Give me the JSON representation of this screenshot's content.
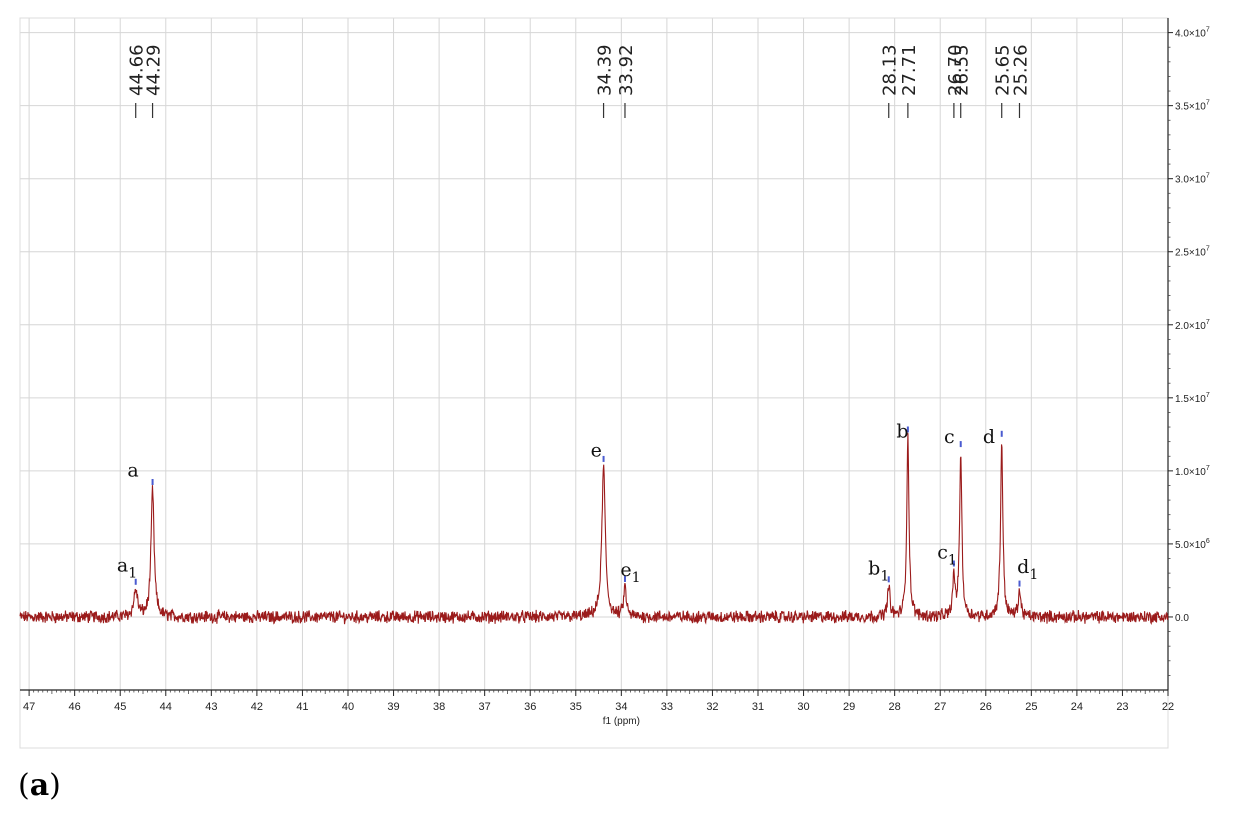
{
  "panel_label": {
    "open": "(",
    "letter": "a",
    "close": ")"
  },
  "chart_data": {
    "type": "line",
    "title": "",
    "xlabel": "f1 (ppm)",
    "ylabel": "",
    "xlim": [
      47.2,
      22.0
    ],
    "ylim": [
      -5000000,
      41000000
    ],
    "x_reversed": true,
    "grid": true,
    "line_color": "#9b1b1b",
    "peak_tick_color": "#4a5bd0",
    "x_ticks": [
      47,
      46,
      45,
      44,
      43,
      42,
      41,
      40,
      39,
      38,
      37,
      36,
      35,
      34,
      33,
      32,
      31,
      30,
      29,
      28,
      27,
      26,
      25,
      24,
      23,
      22
    ],
    "x_tick_labels": [
      "47",
      "46",
      "45",
      "44",
      "43",
      "42",
      "41",
      "40",
      "39",
      "38",
      "37",
      "36",
      "35",
      "34",
      "33",
      "32",
      "31",
      "30",
      "29",
      "28",
      "27",
      "26",
      "25",
      "24",
      "23",
      "22"
    ],
    "y_ticks": [
      {
        "value": 0,
        "mantissa": "0.0",
        "exp": ""
      },
      {
        "value": 5000000,
        "mantissa": "5.0×10",
        "exp": "6"
      },
      {
        "value": 10000000,
        "mantissa": "1.0×10",
        "exp": "7"
      },
      {
        "value": 15000000,
        "mantissa": "1.5×10",
        "exp": "7"
      },
      {
        "value": 20000000,
        "mantissa": "2.0×10",
        "exp": "7"
      },
      {
        "value": 25000000,
        "mantissa": "2.5×10",
        "exp": "7"
      },
      {
        "value": 30000000,
        "mantissa": "3.0×10",
        "exp": "7"
      },
      {
        "value": 35000000,
        "mantissa": "3.5×10",
        "exp": "7"
      },
      {
        "value": 40000000,
        "mantissa": "4.0×10",
        "exp": "7"
      }
    ],
    "peaks": [
      {
        "ppm": 44.66,
        "label": "44.66",
        "height": 1800000,
        "width": 0.05
      },
      {
        "ppm": 44.29,
        "label": "44.29",
        "height": 8700000,
        "width": 0.04
      },
      {
        "ppm": 34.39,
        "label": "34.39",
        "height": 10300000,
        "width": 0.045
      },
      {
        "ppm": 33.92,
        "label": "33.92",
        "height": 2000000,
        "width": 0.035
      },
      {
        "ppm": 28.13,
        "label": "28.13",
        "height": 2000000,
        "width": 0.035
      },
      {
        "ppm": 27.71,
        "label": "27.71",
        "height": 12300000,
        "width": 0.03
      },
      {
        "ppm": 26.7,
        "label": "26.70",
        "height": 2700000,
        "width": 0.03
      },
      {
        "ppm": 26.55,
        "label": "26.55",
        "height": 11200000,
        "width": 0.03
      },
      {
        "ppm": 25.65,
        "label": "25.65",
        "height": 12000000,
        "width": 0.03
      },
      {
        "ppm": 25.26,
        "label": "25.26",
        "height": 1700000,
        "width": 0.035
      }
    ],
    "peak_letters": [
      {
        "letter": "a",
        "sub": "1",
        "ppm": 44.85,
        "level": 3100000
      },
      {
        "letter": "a",
        "sub": "",
        "ppm": 44.72,
        "level": 9600000
      },
      {
        "letter": "e",
        "sub": "",
        "ppm": 34.55,
        "level": 11000000
      },
      {
        "letter": "e",
        "sub": "1",
        "ppm": 33.8,
        "level": 2800000
      },
      {
        "letter": "b",
        "sub": "1",
        "ppm": 28.35,
        "level": 2900000
      },
      {
        "letter": "b",
        "sub": "",
        "ppm": 27.83,
        "level": 12300000
      },
      {
        "letter": "c",
        "sub": "1",
        "ppm": 26.85,
        "level": 4000000
      },
      {
        "letter": "c",
        "sub": "",
        "ppm": 26.8,
        "level": 11900000
      },
      {
        "letter": "d",
        "sub": "",
        "ppm": 25.93,
        "level": 11900000
      },
      {
        "letter": "d",
        "sub": "1",
        "ppm": 25.08,
        "level": 3000000
      }
    ]
  }
}
